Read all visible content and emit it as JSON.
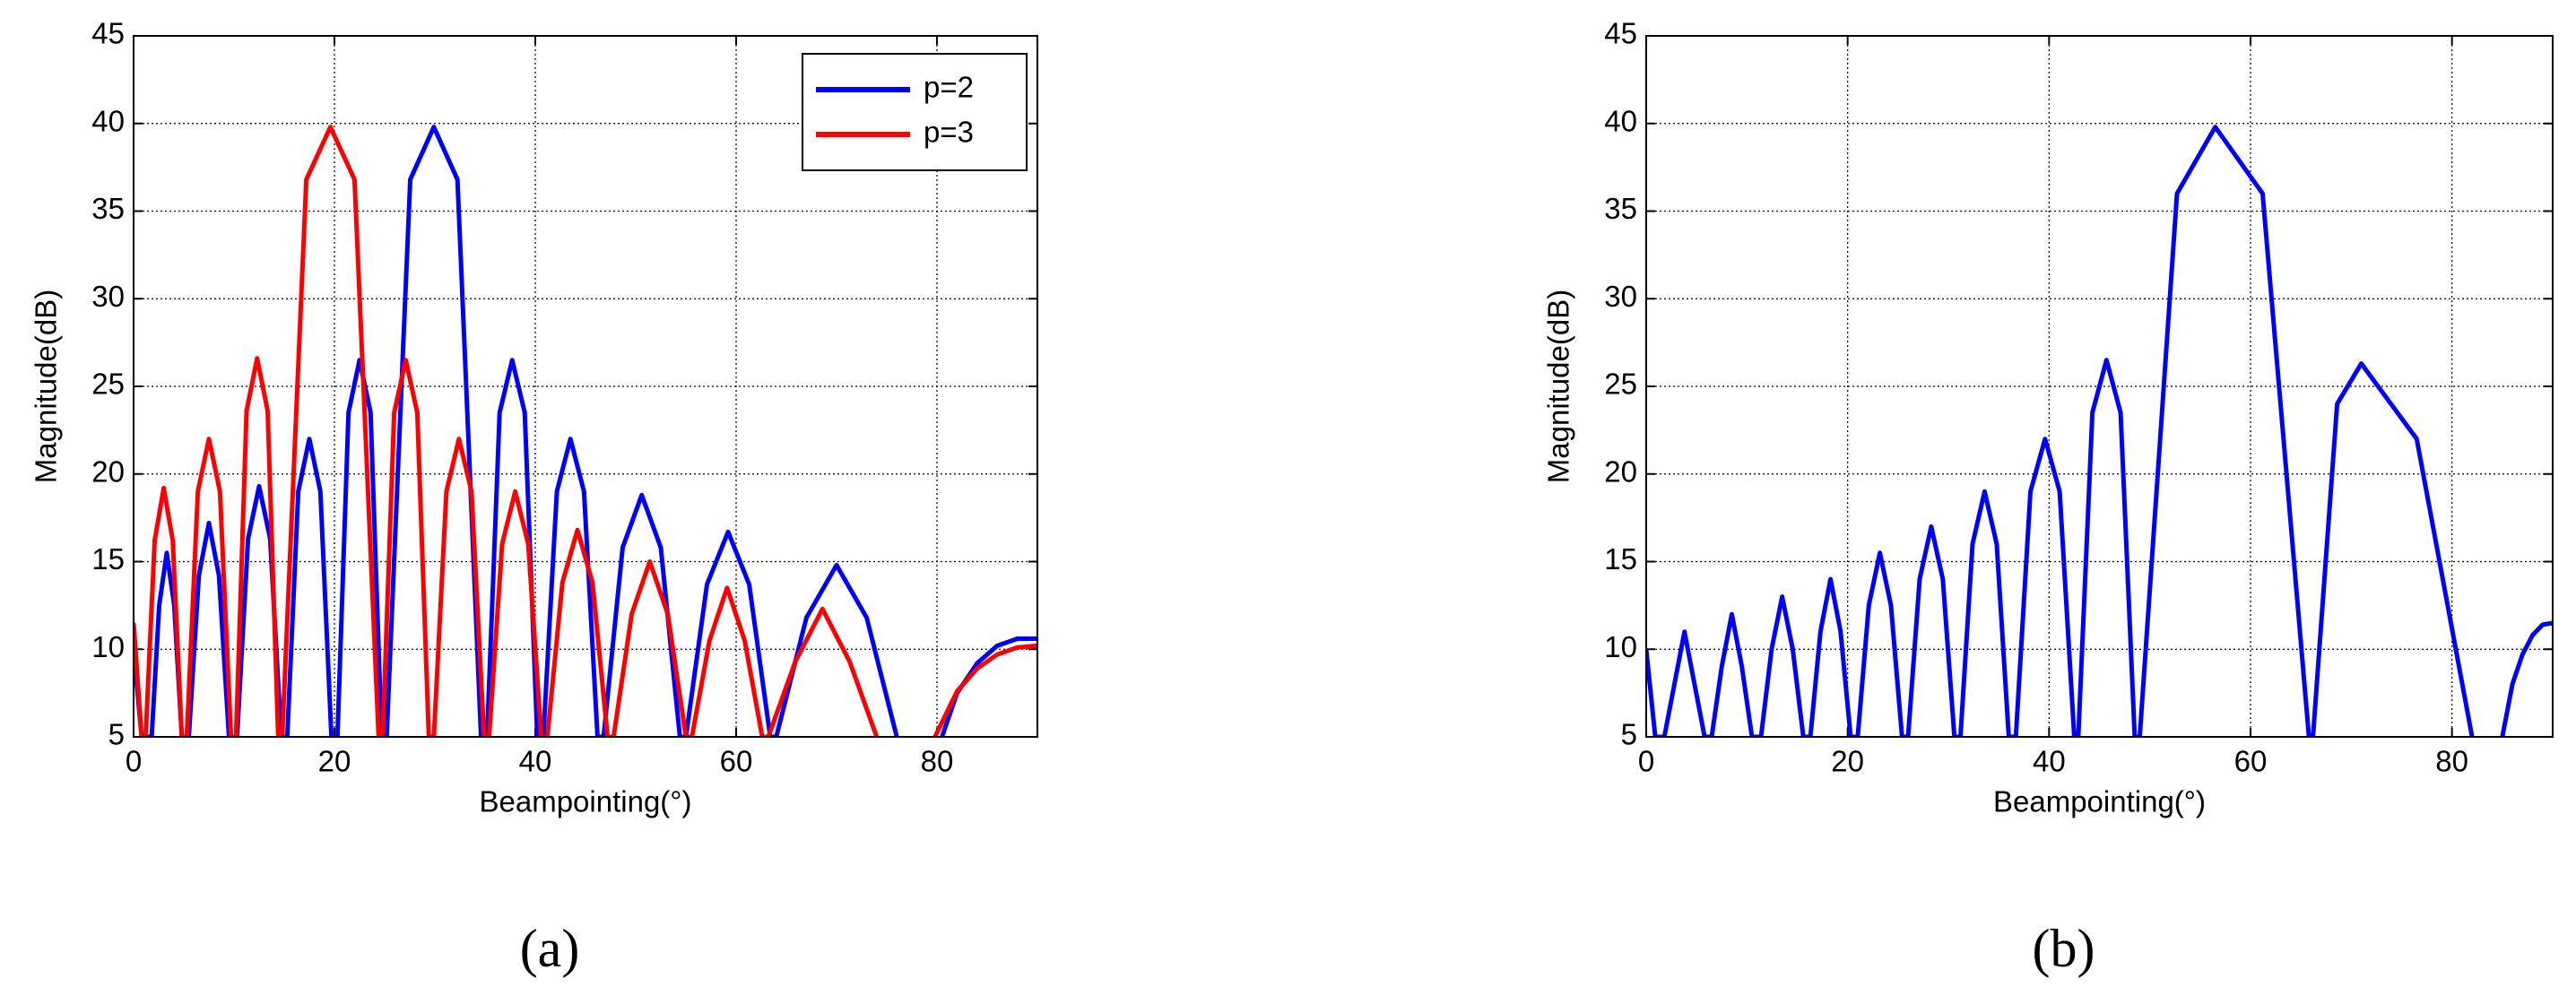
{
  "chart_data": [
    {
      "type": "line",
      "caption": "(a)",
      "xlabel": "Beampointing(°)",
      "ylabel": "Magnitude(dB)",
      "xlim": [
        0,
        90
      ],
      "xticks": [
        0,
        20,
        40,
        60,
        80
      ],
      "ylim": [
        5,
        45
      ],
      "yticks": [
        5,
        10,
        15,
        20,
        25,
        30,
        35,
        40,
        45
      ],
      "grid": true,
      "legend": "northeast",
      "series": [
        {
          "name": "p=2",
          "color": "#0000ff",
          "x": [
            0,
            0.8,
            1.8,
            2.55,
            3.3,
            4.05,
            4.8,
            5.5,
            6.5,
            7.5,
            8.5,
            9.5,
            10.3,
            11.4,
            12.5,
            13.6,
            14.7,
            15.3,
            16.4,
            17.5,
            18.6,
            19.7,
            20.3,
            21.4,
            22.5,
            23.6,
            24.7,
            25.2,
            27.55,
            29.9,
            32.25,
            34.6,
            35.2,
            36.45,
            37.7,
            38.95,
            40.2,
            40.8,
            42.15,
            43.5,
            44.85,
            46.2,
            46.8,
            48.7,
            50.6,
            52.5,
            54.4,
            55,
            57.1,
            59.2,
            61.3,
            63.4,
            64,
            67,
            70,
            73,
            76,
            null,
            80.5,
            82,
            84,
            86,
            88,
            90
          ],
          "values": [
            10,
            5,
            5,
            12.5,
            15.5,
            12.5,
            5,
            5,
            14.2,
            17.2,
            14.2,
            5,
            5,
            16.3,
            19.3,
            16.3,
            5,
            5,
            19,
            22,
            19,
            5,
            5,
            23.5,
            26.5,
            23.5,
            5,
            5,
            36.8,
            39.8,
            36.8,
            5,
            5,
            23.5,
            26.5,
            23.5,
            5,
            5,
            19,
            22,
            19,
            5,
            5,
            15.8,
            18.8,
            15.8,
            5,
            5,
            13.7,
            16.7,
            13.7,
            5,
            5,
            11.8,
            14.8,
            11.8,
            5,
            null,
            5,
            7.5,
            9.2,
            10.2,
            10.6,
            10.6
          ]
        },
        {
          "name": "p=3",
          "color": "#ff0000",
          "x": [
            0,
            0.8,
            1.2,
            2.1,
            3.0,
            3.9,
            4.8,
            5.3,
            6.4,
            7.5,
            8.6,
            9.7,
            10.2,
            11.25,
            12.3,
            13.35,
            14.4,
            14.8,
            17.2,
            19.6,
            22,
            24.4,
            24.8,
            25.95,
            27.1,
            28.25,
            29.4,
            29.9,
            31.15,
            32.4,
            33.65,
            34.9,
            35.4,
            36.7,
            38,
            39.3,
            40.6,
            41.2,
            42.7,
            44.2,
            45.7,
            47.2,
            47.8,
            49.6,
            51.4,
            53.2,
            55,
            55.6,
            57.35,
            59.1,
            60.85,
            62.6,
            63.2,
            65.9,
            68.6,
            71.3,
            74,
            null,
            79.8,
            82,
            84,
            86,
            88,
            90
          ],
          "values": [
            11.5,
            5,
            5,
            16.2,
            19.2,
            16.2,
            5,
            5,
            19,
            22,
            19,
            5,
            5,
            23.6,
            26.6,
            23.6,
            5,
            5,
            36.8,
            39.8,
            36.8,
            5,
            5,
            23.5,
            26.5,
            23.5,
            5,
            5,
            19,
            22,
            19,
            5,
            5,
            16,
            19,
            16,
            5,
            5,
            13.8,
            16.8,
            13.8,
            5,
            5,
            12,
            15,
            12,
            5,
            5,
            10.5,
            13.5,
            10.5,
            5,
            5,
            9.3,
            12.3,
            9.3,
            5,
            null,
            5,
            7.6,
            8.9,
            9.7,
            10.1,
            10.2
          ]
        }
      ]
    },
    {
      "type": "line",
      "caption": "(b)",
      "xlabel": "Beampointing(°)",
      "ylabel": "Magnitude(dB)",
      "xlim": [
        0,
        90
      ],
      "xticks": [
        0,
        20,
        40,
        60,
        80
      ],
      "ylim": [
        5,
        45
      ],
      "yticks": [
        5,
        10,
        15,
        20,
        25,
        30,
        35,
        40,
        45
      ],
      "grid": true,
      "series": [
        {
          "color": "#0000ff",
          "x": [
            0,
            0.9,
            1.8,
            2.8,
            3.8,
            4.8,
            5.8,
            6.5,
            7.5,
            8.5,
            9.5,
            10.5,
            11.4,
            12.45,
            13.5,
            14.55,
            15.6,
            16.3,
            17.3,
            18.3,
            19.3,
            20.3,
            21,
            22.1,
            23.2,
            24.3,
            25.4,
            26,
            27.15,
            28.3,
            29.45,
            30.6,
            31.2,
            32.4,
            33.6,
            34.8,
            36,
            36.7,
            38.15,
            39.6,
            41.05,
            42.5,
            42.9,
            44.3,
            45.7,
            47.1,
            48.5,
            49,
            52.7,
            56.5,
            61.2,
            65.8,
            66.2,
            68.6,
            71,
            76.5,
            82,
            null,
            85,
            86,
            87,
            88,
            89,
            90
          ],
          "values": [
            10,
            5,
            5,
            8,
            11,
            8,
            5,
            5,
            9,
            12,
            9,
            5,
            5,
            10,
            13,
            10,
            5,
            5,
            11,
            14,
            11,
            5,
            5,
            12.5,
            15.5,
            12.5,
            5,
            5,
            14,
            17,
            14,
            5,
            5,
            16,
            19,
            16,
            5,
            5,
            19,
            22,
            19,
            5,
            5,
            23.5,
            26.5,
            23.5,
            5,
            5,
            36,
            39.8,
            36,
            5,
            5,
            24,
            26.3,
            22,
            5,
            null,
            5,
            8,
            9.7,
            10.8,
            11.4,
            11.5
          ]
        }
      ]
    }
  ]
}
